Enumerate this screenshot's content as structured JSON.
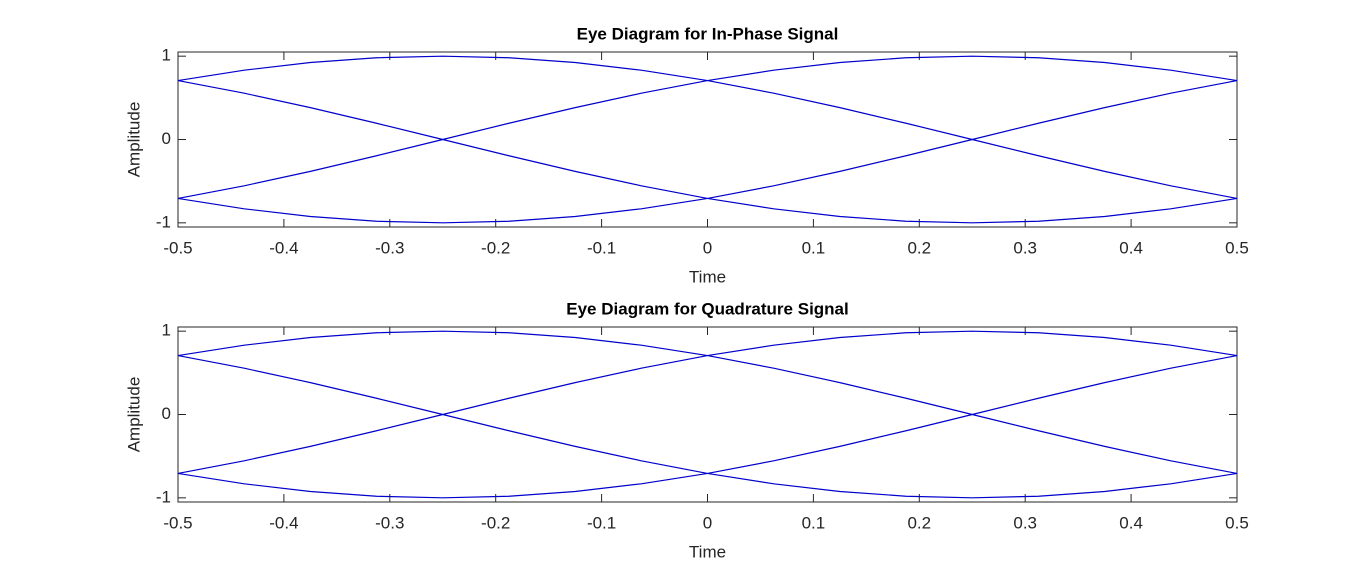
{
  "chart_data": [
    {
      "type": "line",
      "title": "Eye Diagram for In-Phase Signal",
      "xlabel": "Time",
      "ylabel": "Amplitude",
      "x": [
        -0.5,
        -0.4375,
        -0.375,
        -0.3125,
        -0.25,
        -0.1875,
        -0.125,
        -0.0625,
        0,
        0.0625,
        0.125,
        0.1875,
        0.25,
        0.3125,
        0.375,
        0.4375,
        0.5
      ],
      "series": [
        {
          "color": "#0000cc",
          "values": [
            0.7071,
            0.8315,
            0.9239,
            0.9808,
            1,
            0.9808,
            0.9239,
            0.8315,
            0.7071,
            0.5556,
            0.3827,
            0.1951,
            0,
            -0.1951,
            -0.3827,
            -0.5556,
            -0.7071
          ]
        },
        {
          "color": "#0000cc",
          "values": [
            -0.7071,
            -0.5556,
            -0.3827,
            -0.1951,
            0,
            0.1951,
            0.3827,
            0.5556,
            0.7071,
            0.8315,
            0.9239,
            0.9808,
            1,
            0.9808,
            0.9239,
            0.8315,
            0.7071
          ]
        },
        {
          "color": "#0000cc",
          "values": [
            -0.7071,
            -0.8315,
            -0.9239,
            -0.9808,
            -1,
            -0.9808,
            -0.9239,
            -0.8315,
            -0.7071,
            -0.5556,
            -0.3827,
            -0.1951,
            0,
            0.1951,
            0.3827,
            0.5556,
            0.7071
          ]
        },
        {
          "color": "#0000cc",
          "values": [
            0.7071,
            0.5556,
            0.3827,
            0.1951,
            0,
            -0.1951,
            -0.3827,
            -0.5556,
            -0.7071,
            -0.8315,
            -0.9239,
            -0.9808,
            -1,
            -0.9808,
            -0.9239,
            -0.8315,
            -0.7071
          ]
        }
      ],
      "xlim": [
        -0.5,
        0.5
      ],
      "ylim": [
        -1.05,
        1.05
      ],
      "xticks": [
        -0.5,
        -0.4,
        -0.3,
        -0.2,
        -0.1,
        0,
        0.1,
        0.2,
        0.3,
        0.4,
        0.5
      ],
      "yticks": [
        -1,
        0,
        1
      ]
    },
    {
      "type": "line",
      "title": "Eye Diagram for Quadrature Signal",
      "xlabel": "Time",
      "ylabel": "Amplitude",
      "x": [
        -0.5,
        -0.4375,
        -0.375,
        -0.3125,
        -0.25,
        -0.1875,
        -0.125,
        -0.0625,
        0,
        0.0625,
        0.125,
        0.1875,
        0.25,
        0.3125,
        0.375,
        0.4375,
        0.5
      ],
      "series": [
        {
          "color": "#0000cc",
          "values": [
            0.7071,
            0.8315,
            0.9239,
            0.9808,
            1,
            0.9808,
            0.9239,
            0.8315,
            0.7071,
            0.5556,
            0.3827,
            0.1951,
            0,
            -0.1951,
            -0.3827,
            -0.5556,
            -0.7071
          ]
        },
        {
          "color": "#0000cc",
          "values": [
            -0.7071,
            -0.5556,
            -0.3827,
            -0.1951,
            0,
            0.1951,
            0.3827,
            0.5556,
            0.7071,
            0.8315,
            0.9239,
            0.9808,
            1,
            0.9808,
            0.9239,
            0.8315,
            0.7071
          ]
        },
        {
          "color": "#0000cc",
          "values": [
            -0.7071,
            -0.8315,
            -0.9239,
            -0.9808,
            -1,
            -0.9808,
            -0.9239,
            -0.8315,
            -0.7071,
            -0.5556,
            -0.3827,
            -0.1951,
            0,
            0.1951,
            0.3827,
            0.5556,
            0.7071
          ]
        },
        {
          "color": "#0000cc",
          "values": [
            0.7071,
            0.5556,
            0.3827,
            0.1951,
            0,
            -0.1951,
            -0.3827,
            -0.5556,
            -0.7071,
            -0.8315,
            -0.9239,
            -0.9808,
            -1,
            -0.9808,
            -0.9239,
            -0.8315,
            -0.7071
          ]
        }
      ],
      "xlim": [
        -0.5,
        0.5
      ],
      "ylim": [
        -1.05,
        1.05
      ],
      "xticks": [
        -0.5,
        -0.4,
        -0.3,
        -0.2,
        -0.1,
        0,
        0.1,
        0.2,
        0.3,
        0.4,
        0.5
      ],
      "yticks": [
        -1,
        0,
        1
      ]
    }
  ]
}
